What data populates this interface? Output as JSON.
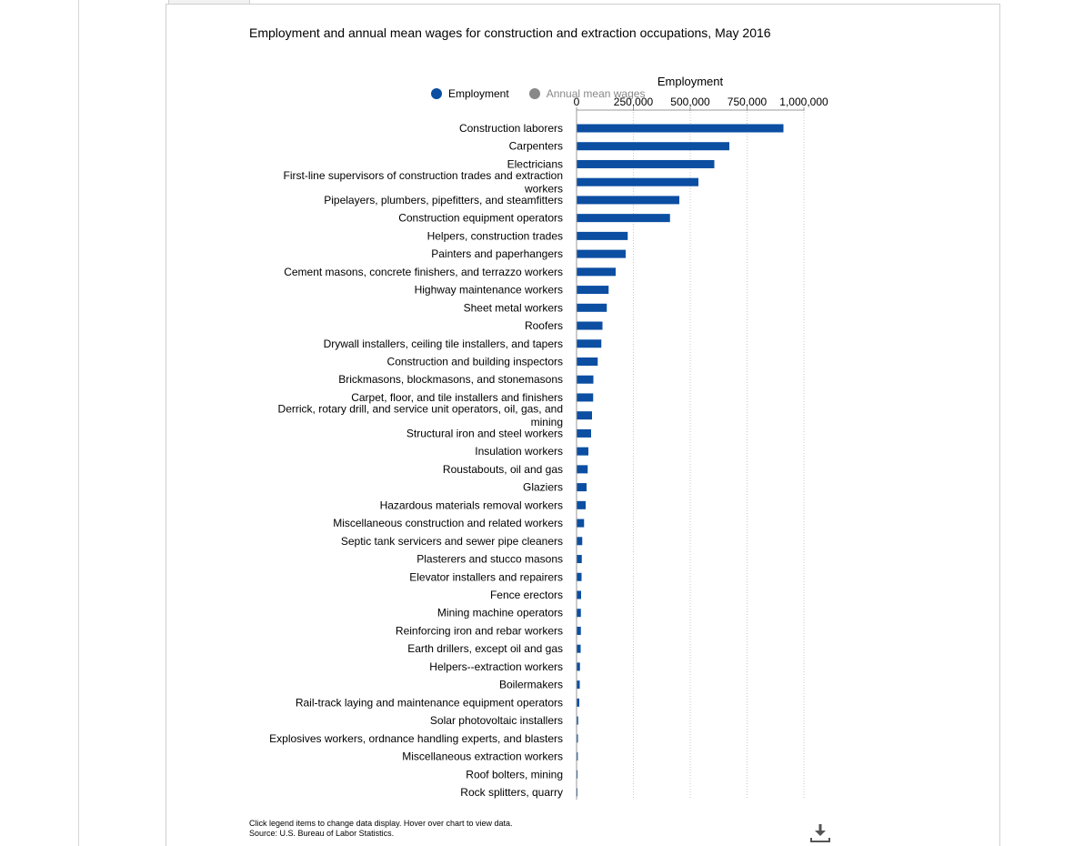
{
  "chart_data": {
    "type": "bar",
    "orientation": "horizontal",
    "title": "Employment and annual mean wages for construction and extraction occupations, May 2016",
    "xlabel": "Employment",
    "ylabel": "",
    "xlim": [
      0,
      1000000
    ],
    "ticks": [
      0,
      250000,
      500000,
      750000,
      1000000
    ],
    "tick_labels": [
      "0",
      "250,000",
      "500,000",
      "750,000",
      "1,000,000"
    ],
    "grid": true,
    "legend": {
      "placement": "top",
      "items": [
        {
          "name": "Employment",
          "color": "#0b4ea2",
          "active": true
        },
        {
          "name": "Annual mean wages",
          "color": "#888888",
          "active": false
        }
      ]
    },
    "categories": [
      [
        "Construction laborers"
      ],
      [
        "Carpenters"
      ],
      [
        "Electricians"
      ],
      [
        "First-line supervisors of construction trades and extraction",
        "workers"
      ],
      [
        "Pipelayers, plumbers, pipefitters, and steamfitters"
      ],
      [
        "Construction equipment operators"
      ],
      [
        "Helpers, construction trades"
      ],
      [
        "Painters and paperhangers"
      ],
      [
        "Cement masons, concrete finishers, and terrazzo workers"
      ],
      [
        "Highway maintenance workers"
      ],
      [
        "Sheet metal workers"
      ],
      [
        "Roofers"
      ],
      [
        "Drywall installers, ceiling tile installers, and tapers"
      ],
      [
        "Construction and building inspectors"
      ],
      [
        "Brickmasons, blockmasons, and stonemasons"
      ],
      [
        "Carpet, floor, and tile installers and finishers"
      ],
      [
        "Derrick, rotary drill, and service unit operators, oil, gas, and",
        "mining"
      ],
      [
        "Structural iron and steel workers"
      ],
      [
        "Insulation workers"
      ],
      [
        "Roustabouts, oil and gas"
      ],
      [
        "Glaziers"
      ],
      [
        "Hazardous materials removal workers"
      ],
      [
        "Miscellaneous construction and related workers"
      ],
      [
        "Septic tank servicers and sewer pipe cleaners"
      ],
      [
        "Plasterers and stucco masons"
      ],
      [
        "Elevator installers and repairers"
      ],
      [
        "Fence erectors"
      ],
      [
        "Mining machine operators"
      ],
      [
        "Reinforcing iron and rebar workers"
      ],
      [
        "Earth drillers, except oil and gas"
      ],
      [
        "Helpers--extraction workers"
      ],
      [
        "Boilermakers"
      ],
      [
        "Rail-track laying and maintenance equipment operators"
      ],
      [
        "Solar photovoltaic installers"
      ],
      [
        "Explosives workers, ordnance handling experts, and blasters"
      ],
      [
        "Miscellaneous extraction workers"
      ],
      [
        "Roof bolters, mining"
      ],
      [
        "Rock splitters, quarry"
      ]
    ],
    "series": [
      {
        "name": "Employment",
        "color": "#0b4ea2",
        "values": [
          910000,
          672000,
          606000,
          536000,
          452000,
          411000,
          225000,
          216000,
          172000,
          141000,
          133000,
          114000,
          109000,
          93000,
          74000,
          73000,
          68000,
          64000,
          52000,
          49000,
          44000,
          40000,
          33000,
          25000,
          23000,
          22000,
          20000,
          19000,
          19000,
          18000,
          15000,
          14000,
          12000,
          7000,
          6000,
          5500,
          4500,
          3000
        ]
      }
    ]
  },
  "footer": {
    "line1": "Click legend items to change data display. Hover over chart to view data.",
    "line2": "Source: U.S. Bureau of Labor Statistics."
  }
}
